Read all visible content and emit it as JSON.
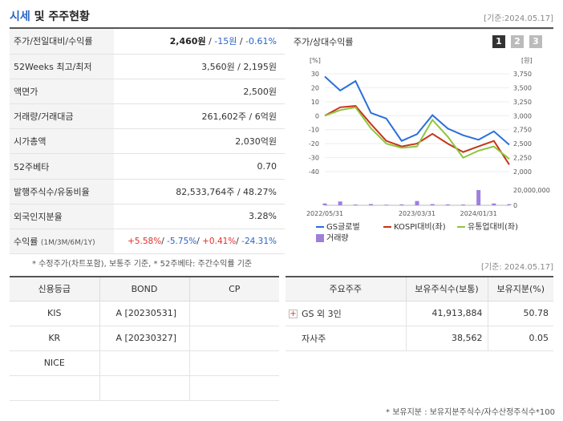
{
  "header": {
    "title_a": "시세",
    "title_b": " 및 주주현황",
    "asof": "[기준:2024.05.17]"
  },
  "rows": [
    {
      "label": "주가/전일대비/수익률",
      "v1": "2,460원",
      "v2": " / ",
      "v3": "-15원",
      "v4": " / ",
      "v5": "-0.61%"
    },
    {
      "label": "52Weeks 최고/최저",
      "value": "3,560원 / 2,195원"
    },
    {
      "label": "액면가",
      "value": "2,500원"
    },
    {
      "label": "거래량/거래대금",
      "value": "261,602주 / 6억원"
    },
    {
      "label": "시가총액",
      "value": "2,030억원"
    },
    {
      "label": "52주베타",
      "value": "0.70"
    },
    {
      "label": "발행주식수/유동비율",
      "value": "82,533,764주 / 48.27%"
    },
    {
      "label": "외국인지분율",
      "value": "3.28%"
    },
    {
      "label": "수익률",
      "sub": "(1M/3M/6M/1Y)",
      "r1": "+5.58%",
      "r2": "-5.75%",
      "r3": "+0.41%",
      "r4": "-24.31%",
      "sep": "/ "
    }
  ],
  "chart": {
    "title": "주가/상대수익률",
    "pages": [
      "1",
      "2",
      "3"
    ],
    "left_unit": "[%]",
    "right_unit": "[원]",
    "left_ticks": [
      "30",
      "20",
      "10",
      "0",
      "-10",
      "-20",
      "-30",
      "-40"
    ],
    "right_ticks": [
      "3,750",
      "3,500",
      "3,250",
      "3,000",
      "2,750",
      "2,500",
      "2,250",
      "2,000"
    ],
    "vol_tick_top": "20,000,000",
    "vol_tick_zero": "0",
    "x_ticks": [
      "2022/05/31",
      "2023/03/31",
      "2024/01/31"
    ],
    "legend": [
      "GS글로벌",
      "KOSPI대비(좌)",
      "유통업대비(좌)",
      "거래량"
    ],
    "colors": {
      "stock": "#2a6fdb",
      "kospi": "#c8341b",
      "sector": "#8cc63f",
      "volume": "#9e7fdb"
    }
  },
  "chart_data": {
    "type": "line",
    "x": [
      "2022/05",
      "2022/07",
      "2022/09",
      "2022/11",
      "2023/01",
      "2023/03",
      "2023/05",
      "2023/07",
      "2023/09",
      "2023/11",
      "2024/01",
      "2024/03",
      "2024/05"
    ],
    "series": [
      {
        "name": "GS글로벌",
        "axis": "right",
        "values": [
          3700,
          3450,
          3620,
          3050,
          2950,
          2550,
          2670,
          3010,
          2770,
          2650,
          2570,
          2720,
          2480
        ]
      },
      {
        "name": "KOSPI대비(좌)",
        "axis": "left",
        "values": [
          0,
          6,
          7,
          -6,
          -18,
          -22,
          -20,
          -13,
          -20,
          -26,
          -22,
          -18,
          -35
        ]
      },
      {
        "name": "유통업대비(좌)",
        "axis": "left",
        "values": [
          0,
          4,
          6,
          -9,
          -20,
          -23,
          -22,
          -3,
          -15,
          -30,
          -25,
          -22,
          -31
        ]
      }
    ],
    "volume": {
      "name": "거래량",
      "values": [
        0.12,
        0.25,
        0.05,
        0.08,
        0.04,
        0.06,
        0.28,
        0.08,
        0.06,
        0.05,
        1.0,
        0.12,
        0.07
      ]
    },
    "ylim_left": [
      -40,
      30
    ],
    "ylim_right": [
      2000,
      3750
    ]
  },
  "note1": "* 수정주가(차트포함), 보통주 기준, * 52주베타: 주간수익률 기준",
  "asof2": "[기준: 2024.05.17]",
  "credit": {
    "headers": [
      "신용등급",
      "BOND",
      "CP"
    ],
    "rows": [
      [
        "KIS",
        "A   [20230531]",
        ""
      ],
      [
        "KR",
        "A   [20230327]",
        ""
      ],
      [
        "NICE",
        "",
        ""
      ],
      [
        "",
        "",
        ""
      ]
    ]
  },
  "holders": {
    "headers": [
      "주요주주",
      "보유주식수(보통)",
      "보유지분(%)"
    ],
    "rows": [
      {
        "name": "GS 외 3인",
        "expand": "+",
        "shares": "41,913,884",
        "pct": "50.78"
      },
      {
        "name": "자사주",
        "shares": "38,562",
        "pct": "0.05"
      }
    ]
  },
  "note2": "* 보유지분 : 보유지분주식수/자수산정주식수*100"
}
